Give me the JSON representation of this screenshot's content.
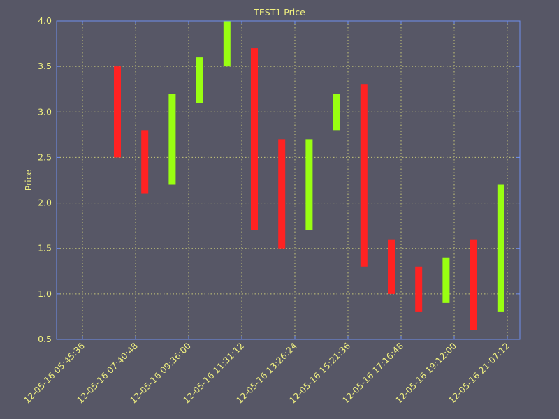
{
  "colors": {
    "background": "#575766",
    "text": "#f0f080",
    "axis": "#6f8fef",
    "grid": "#c8c878",
    "up": "#99ff11",
    "down": "#ff2222"
  },
  "chart_data": {
    "type": "bar",
    "subtype": "candlestick-bodies",
    "title": "TEST1 Price",
    "xlabel": "",
    "ylabel": "Price",
    "ylim": [
      0.5,
      4.0
    ],
    "yticks": [
      "0.5",
      "1.0",
      "1.5",
      "2.0",
      "2.5",
      "3.0",
      "3.5",
      "4.0"
    ],
    "xticks": [
      "12-05-16 05:45:36",
      "12-05-16 07:40:48",
      "12-05-16 09:36:00",
      "12-05-16 11:31:12",
      "12-05-16 13:26:24",
      "12-05-16 15:21:36",
      "12-05-16 17:16:48",
      "12-05-16 19:12:00",
      "12-05-16 21:07:12"
    ],
    "grid": true,
    "bars": [
      {
        "time": "12-05-16 06:18",
        "low": 2.5,
        "high": 3.5,
        "direction": "down"
      },
      {
        "time": "12-05-16 07:20",
        "low": 2.1,
        "high": 2.8,
        "direction": "down"
      },
      {
        "time": "12-05-16 08:22",
        "low": 2.2,
        "high": 3.2,
        "direction": "up"
      },
      {
        "time": "12-05-16 09:24",
        "low": 3.1,
        "high": 3.6,
        "direction": "up"
      },
      {
        "time": "12-05-16 10:26",
        "low": 3.5,
        "high": 4.0,
        "direction": "up"
      },
      {
        "time": "12-05-16 11:28",
        "low": 1.7,
        "high": 3.7,
        "direction": "down"
      },
      {
        "time": "12-05-16 12:30",
        "low": 1.5,
        "high": 2.7,
        "direction": "down"
      },
      {
        "time": "12-05-16 13:32",
        "low": 1.7,
        "high": 2.7,
        "direction": "up"
      },
      {
        "time": "12-05-16 14:34",
        "low": 2.8,
        "high": 3.2,
        "direction": "up"
      },
      {
        "time": "12-05-16 15:36",
        "low": 1.3,
        "high": 3.3,
        "direction": "down"
      },
      {
        "time": "12-05-16 16:38",
        "low": 1.0,
        "high": 1.6,
        "direction": "down"
      },
      {
        "time": "12-05-16 17:40",
        "low": 0.8,
        "high": 1.3,
        "direction": "down"
      },
      {
        "time": "12-05-16 18:42",
        "low": 0.9,
        "high": 1.4,
        "direction": "up"
      },
      {
        "time": "12-05-16 19:44",
        "low": 0.6,
        "high": 1.6,
        "direction": "down"
      },
      {
        "time": "12-05-16 20:46",
        "low": 0.8,
        "high": 2.2,
        "direction": "up"
      }
    ]
  }
}
